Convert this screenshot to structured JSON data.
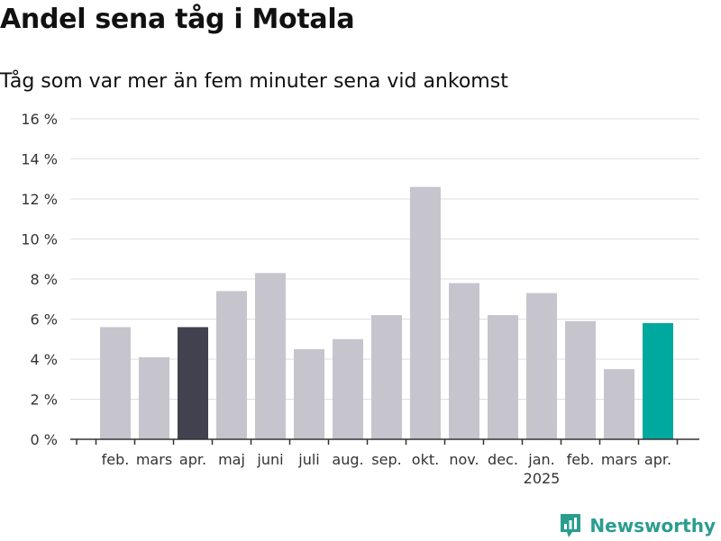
{
  "header": {
    "title": "Andel sena tåg i Motala",
    "subtitle": "Tåg som var mer än fem minuter sena vid ankomst"
  },
  "branding": {
    "name": "Newsworthy",
    "icon": "newsworthy-logo-icon"
  },
  "colors": {
    "bar_default": "#c6c5cd",
    "bar_previous_year_same_month": "#42414f",
    "bar_latest": "#00a99d",
    "gridline": "#dedede",
    "axis": "#333333",
    "brand": "#2a9d8f"
  },
  "chart_data": {
    "type": "bar",
    "categories": [
      "feb.",
      "mars",
      "apr.",
      "maj",
      "juni",
      "juli",
      "aug.",
      "sep.",
      "okt.",
      "nov.",
      "dec.",
      "jan.",
      "feb.",
      "mars",
      "apr."
    ],
    "year_labels": [
      {
        "index": 11,
        "label": "2025"
      }
    ],
    "values": [
      5.6,
      4.1,
      5.6,
      7.4,
      8.3,
      4.5,
      5.0,
      6.2,
      12.6,
      7.8,
      6.2,
      7.3,
      5.9,
      3.5,
      5.8
    ],
    "highlight": [
      {
        "index": 2,
        "color_key": "bar_previous_year_same_month"
      },
      {
        "index": 14,
        "color_key": "bar_latest"
      }
    ],
    "yticks": [
      "0 %",
      "2 %",
      "4 %",
      "6 %",
      "8 %",
      "10 %",
      "12 %",
      "14 %",
      "16 %"
    ],
    "ylim": [
      0,
      16
    ],
    "grid": true,
    "legend": "none",
    "xlabel": "",
    "ylabel": ""
  }
}
